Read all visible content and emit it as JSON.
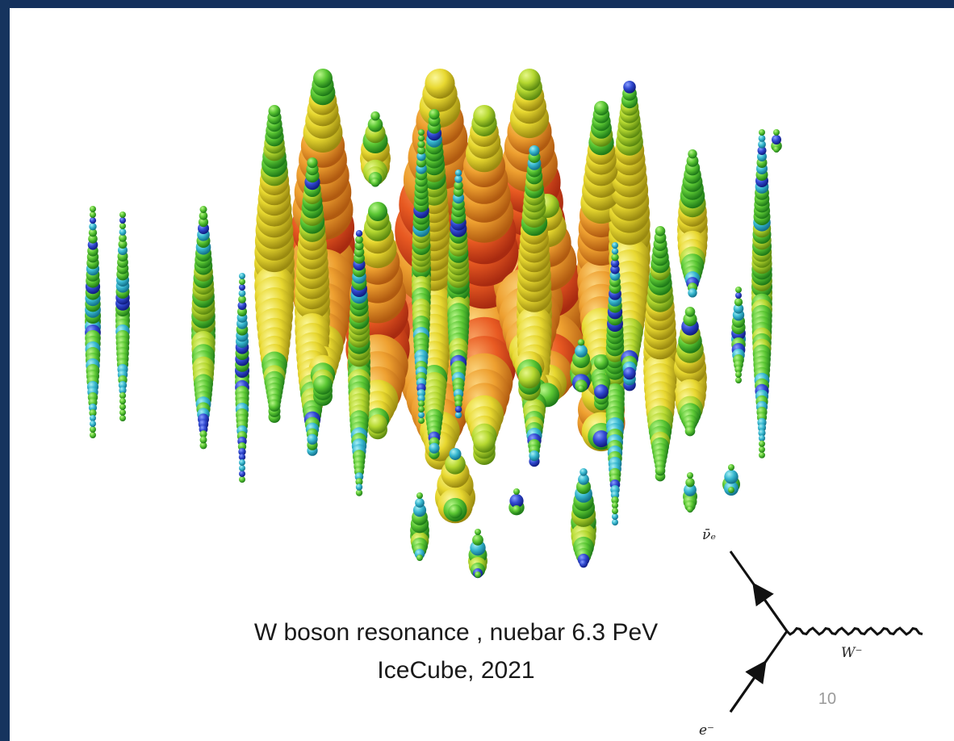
{
  "caption": {
    "lines": [
      "W boson resonance , nuebar 6.3 PeV",
      "IceCube, 2021"
    ]
  },
  "page_number": "10",
  "diagram": {
    "labels": {
      "antineutrino": "ν̄ₑ",
      "boson": "W⁻",
      "electron": "e⁻"
    }
  }
}
